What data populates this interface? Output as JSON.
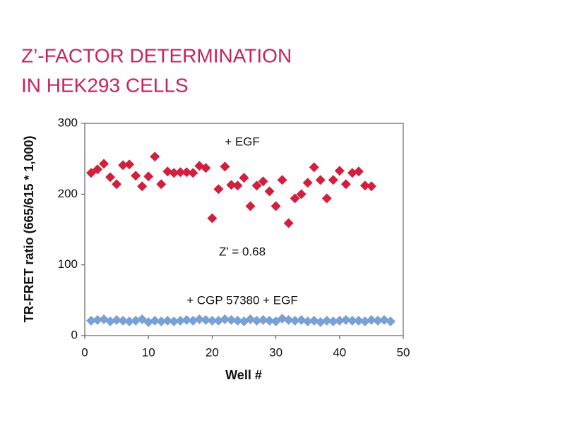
{
  "chart_data": {
    "type": "scatter",
    "title_lines": [
      "Z’-FACTOR DETERMINATION",
      "IN HEK293 CELLS"
    ],
    "x_label": "Well #",
    "y_label": "TR-FRET ratio (665/615 * 1,000)",
    "xlim": [
      0,
      50
    ],
    "xticks": [
      0,
      10,
      20,
      30,
      40,
      50
    ],
    "ylim": [
      0,
      300
    ],
    "yticks": [
      0,
      100,
      200,
      300
    ],
    "annotation": "Z' = 0.68",
    "series": [
      {
        "name": "+ EGF",
        "color": "#d21f3c",
        "x": [
          1,
          2,
          3,
          4,
          5,
          6,
          7,
          8,
          9,
          10,
          11,
          12,
          13,
          14,
          15,
          16,
          17,
          18,
          19,
          20,
          21,
          22,
          23,
          24,
          25,
          26,
          27,
          28,
          29,
          30,
          31,
          32,
          33,
          34,
          35,
          36,
          37,
          38,
          39,
          40,
          41,
          42,
          43,
          44,
          45
        ],
        "values": [
          230,
          235,
          243,
          224,
          214,
          241,
          242,
          226,
          211,
          225,
          253,
          214,
          232,
          230,
          231,
          231,
          230,
          240,
          237,
          166,
          207,
          239,
          213,
          212,
          223,
          183,
          212,
          218,
          204,
          183,
          220,
          159,
          194,
          200,
          216,
          238,
          220,
          194,
          220,
          233,
          214,
          230,
          232,
          212,
          211
        ]
      },
      {
        "name": "+ CGP 57380 + EGF",
        "color": "#7ba0d4",
        "x": [
          1,
          2,
          3,
          4,
          5,
          6,
          7,
          8,
          9,
          10,
          11,
          12,
          13,
          14,
          15,
          16,
          17,
          18,
          19,
          20,
          21,
          22,
          23,
          24,
          25,
          26,
          27,
          28,
          29,
          30,
          31,
          32,
          33,
          34,
          35,
          36,
          37,
          38,
          39,
          40,
          41,
          42,
          43,
          44,
          45,
          46,
          47,
          48
        ],
        "values": [
          21,
          22,
          23,
          20,
          22,
          21,
          20,
          21,
          23,
          19,
          21,
          20,
          21,
          20,
          21,
          22,
          21,
          23,
          22,
          21,
          21,
          23,
          22,
          21,
          20,
          23,
          21,
          22,
          21,
          20,
          24,
          22,
          21,
          22,
          20,
          21,
          19,
          21,
          20,
          21,
          22,
          21,
          21,
          20,
          22,
          21,
          22,
          20
        ]
      }
    ]
  }
}
